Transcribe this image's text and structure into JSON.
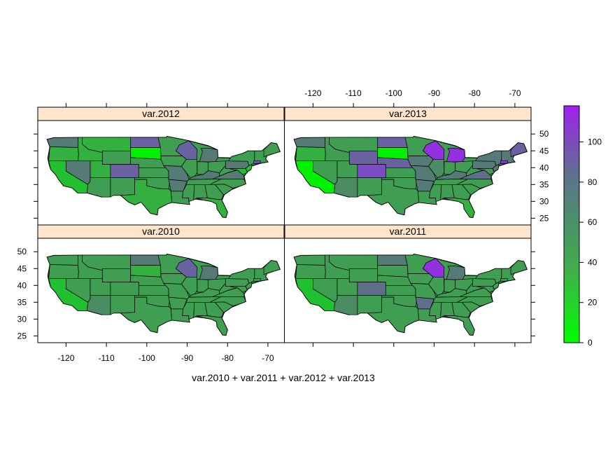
{
  "figure": {
    "formula_label": "var.2010 + var.2011 + var.2012 + var.2013"
  },
  "chart_data": {
    "type": "choropleth",
    "layout": "2x2 lattice",
    "panels": [
      {
        "name": "var.2012",
        "position": "top-left"
      },
      {
        "name": "var.2013",
        "position": "top-right"
      },
      {
        "name": "var.2010",
        "position": "bottom-left"
      },
      {
        "name": "var.2011",
        "position": "bottom-right"
      }
    ],
    "x_ticks": [
      "-120",
      "-110",
      "-100",
      "-90",
      "-80",
      "-70"
    ],
    "x_tick_values": [
      -120,
      -110,
      -100,
      -90,
      -80,
      -70
    ],
    "y_ticks": [
      "25",
      "30",
      "35",
      "40",
      "45",
      "50"
    ],
    "y_tick_values": [
      25,
      30,
      35,
      40,
      45,
      50
    ],
    "xlim": [
      -127,
      -66
    ],
    "ylim": [
      23,
      54
    ],
    "colorkey": {
      "ticks": [
        "0",
        "20",
        "40",
        "60",
        "80",
        "100"
      ],
      "tick_values": [
        0,
        20,
        40,
        60,
        80,
        100
      ],
      "range": [
        0,
        118
      ],
      "low_color": "#00ff00",
      "mid_color": "#5f7a8a",
      "high_color": "#a020f0"
    },
    "strip_color": "#ffe5cc"
  }
}
